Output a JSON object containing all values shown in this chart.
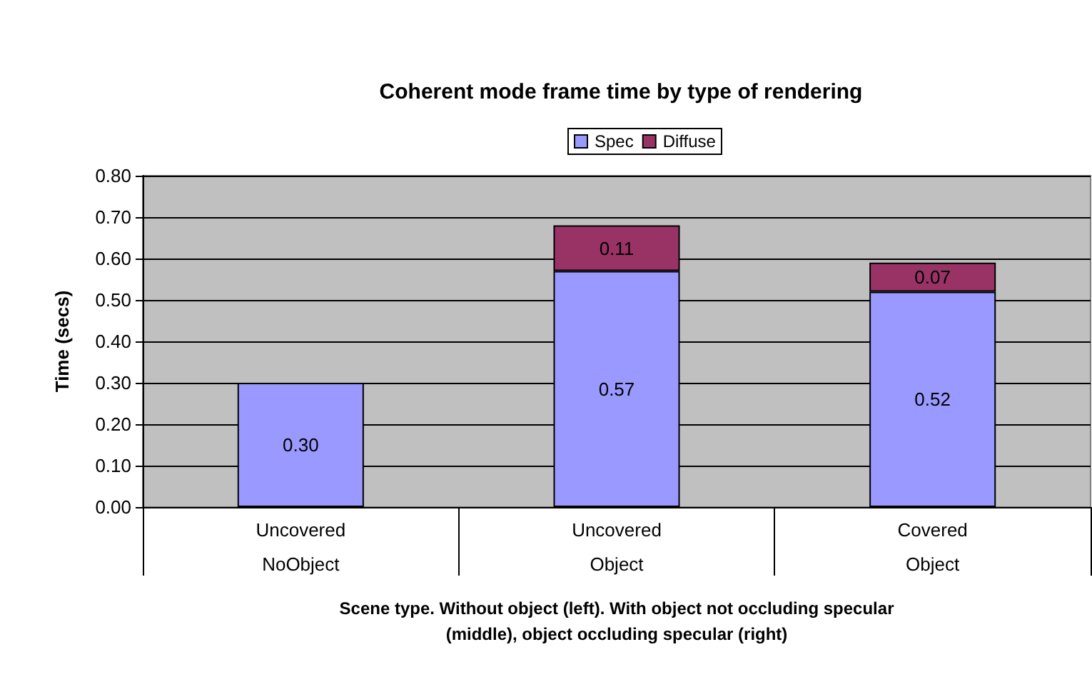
{
  "chart_data": {
    "type": "bar",
    "title": "Coherent mode frame time by type of rendering",
    "xlabel": "Scene type. Without object (left). With object not occluding specular\n(middle), object occluding specular (right)",
    "ylabel": "Time (secs)",
    "categories": [
      "Uncovered\n\nNoObject",
      "Uncovered\n\nObject",
      "Covered\n\nObject"
    ],
    "series": [
      {
        "name": "Spec",
        "color": "#9999ff",
        "values": [
          0.3,
          0.57,
          0.52
        ],
        "value_labels": [
          "0.30",
          "0.57",
          "0.52"
        ]
      },
      {
        "name": "Diffuse",
        "color": "#993366",
        "values": [
          null,
          0.11,
          0.07
        ],
        "value_labels": [
          null,
          "0.11",
          "0.07"
        ]
      }
    ],
    "stacked": true,
    "ylim": [
      0,
      0.8
    ],
    "yticks": [
      {
        "value": 0,
        "label": "0.00"
      },
      {
        "value": 0.1,
        "label": "0.10"
      },
      {
        "value": 0.2,
        "label": "0.20"
      },
      {
        "value": 0.3,
        "label": "0.30"
      },
      {
        "value": 0.4,
        "label": "0.40"
      },
      {
        "value": 0.5,
        "label": "0.50"
      },
      {
        "value": 0.6,
        "label": "0.60"
      },
      {
        "value": 0.7,
        "label": "0.70"
      },
      {
        "value": 0.8,
        "label": "0.80"
      }
    ],
    "grid": "y",
    "legend": "top"
  }
}
